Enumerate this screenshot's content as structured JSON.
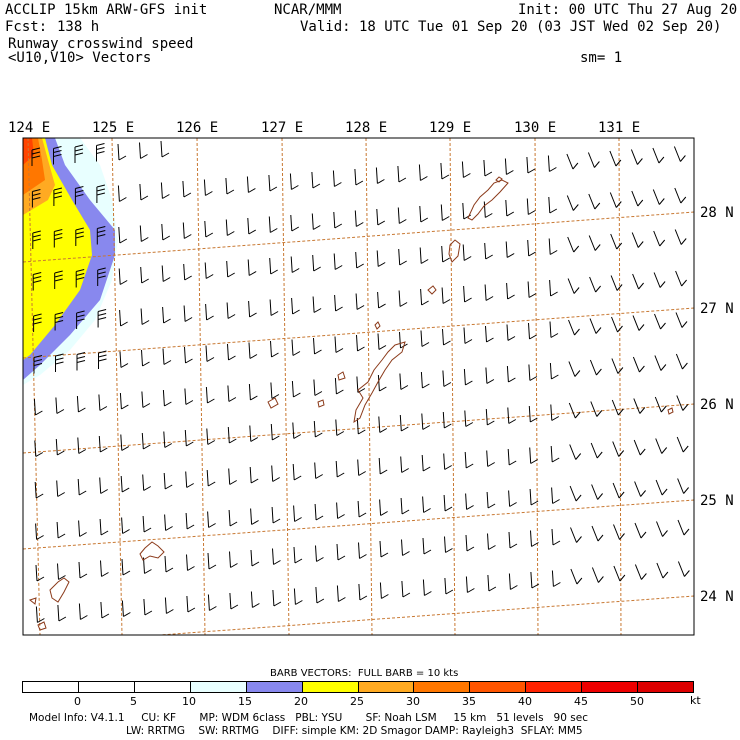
{
  "header": {
    "model": "ACCLIP 15km ARW-GFS init",
    "center": "NCAR/MMM",
    "init": "Init: 00 UTC Thu 27 Aug 20",
    "fcst_label": "Fcst:",
    "fcst_value": "138 h",
    "valid": "Valid: 18 UTC Tue 01 Sep 20 (03 JST Wed 02 Sep 20)",
    "field": "Runway crosswind speed",
    "vectors": "<U10,V10> Vectors",
    "smoothing": "sm= 1"
  },
  "map": {
    "lon_labels": [
      "124 E",
      "125 E",
      "126 E",
      "127 E",
      "128 E",
      "129 E",
      "130 E",
      "131 E"
    ],
    "lat_labels": [
      "28 N",
      "27 N",
      "26 N",
      "25 N",
      "24 N"
    ],
    "grid_color": "#c87832",
    "coast_color": "#8b3a1a"
  },
  "colorbar": {
    "title": "BARB VECTORS:  FULL BARB = 10 kts",
    "ticks": [
      "0",
      "5",
      "10",
      "15",
      "20",
      "25",
      "30",
      "35",
      "40",
      "45",
      "50"
    ],
    "unit": "kt",
    "colors": [
      "#ffffff",
      "#ffffff",
      "#ffffff",
      "#e8ffff",
      "#8888ee",
      "#ffff00",
      "#ffaa22",
      "#ff7700",
      "#ff5500",
      "#ff2200",
      "#ee0000",
      "#dd0000"
    ]
  },
  "footer": {
    "line1": "Model Info: V4.1.1     CU: KF       MP: WDM 6class   PBL: YSU       SF: Noah LSM     15 km   51 levels   90 sec",
    "line2": "LW: RRTMG    SW: RRTMG    DIFF: simple KM: 2D Smagor DAMP: Rayleigh3  SFLAY: MM5"
  }
}
